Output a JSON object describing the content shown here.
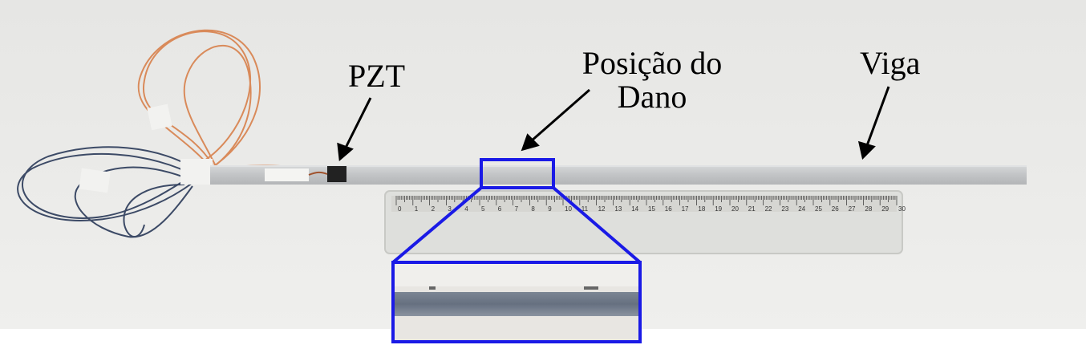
{
  "labels": {
    "pzt": "PZT",
    "damage_line1": "Posição do",
    "damage_line2": "Dano",
    "viga": "Viga"
  },
  "ruler_ticks": [
    "0",
    "1",
    "2",
    "3",
    "4",
    "5",
    "6",
    "7",
    "8",
    "9",
    "10",
    "11",
    "12",
    "13",
    "14",
    "15",
    "16",
    "17",
    "18",
    "19",
    "20",
    "21",
    "22",
    "23",
    "24",
    "25",
    "26",
    "27",
    "28",
    "29",
    "30"
  ],
  "colors": {
    "background": "#ececea",
    "highlight": "#1a1ae6",
    "beam": "#c9cbcc",
    "ruler": "#dcdcd8",
    "wire_copper": "#d98a5a",
    "wire_blue": "#3c4a66",
    "sensor": "#222222"
  }
}
